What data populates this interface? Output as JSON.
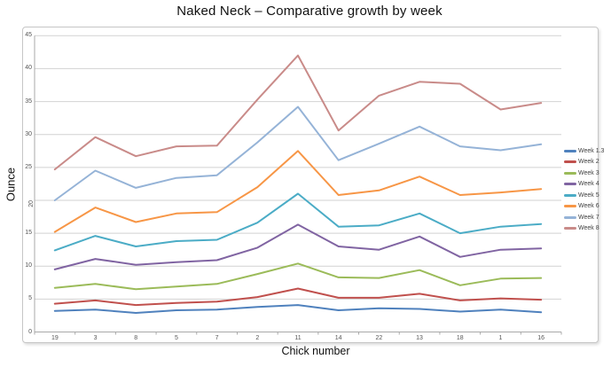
{
  "title": "Naked Neck – Comparative growth by week",
  "axis_titles": {
    "y": "Ounce",
    "x": "Chick number"
  },
  "colors": {
    "grid": "#d2d2d2",
    "axis": "#a8a8a8",
    "tick_text": "#555555",
    "frame": "#c6c6c6"
  },
  "chart_data": {
    "type": "line",
    "title": "Naked Neck – Comparative growth by week",
    "xlabel": "Chick number",
    "ylabel": "Ounce",
    "ylim": [
      0,
      45
    ],
    "y_step": 5,
    "grid": true,
    "legend_position": "right",
    "y_tick_rotated": "20",
    "categories": [
      "19",
      "3",
      "8",
      "5",
      "7",
      "2",
      "11",
      "14",
      "22",
      "13",
      "18",
      "1",
      "16"
    ],
    "series": [
      {
        "name": "Week 1.3",
        "color": "#4F81BD",
        "values": [
          3.2,
          3.4,
          2.9,
          3.3,
          3.4,
          3.8,
          4.1,
          3.3,
          3.6,
          3.5,
          3.1,
          3.4,
          3.0
        ]
      },
      {
        "name": "Week 2",
        "color": "#C0504D",
        "values": [
          4.3,
          4.8,
          4.1,
          4.4,
          4.6,
          5.3,
          6.6,
          5.2,
          5.2,
          5.8,
          4.8,
          5.1,
          4.9
        ]
      },
      {
        "name": "Week 3",
        "color": "#9BBB59",
        "values": [
          6.7,
          7.3,
          6.5,
          6.9,
          7.3,
          8.8,
          10.4,
          8.3,
          8.2,
          9.4,
          7.1,
          8.1,
          8.2
        ]
      },
      {
        "name": "Week 4",
        "color": "#8064A2",
        "values": [
          9.5,
          11.1,
          10.2,
          10.6,
          10.9,
          12.8,
          16.3,
          13.0,
          12.5,
          14.5,
          11.4,
          12.5,
          12.7
        ]
      },
      {
        "name": "Week 5",
        "color": "#4BACC6",
        "values": [
          12.4,
          14.6,
          13.0,
          13.8,
          14.0,
          16.6,
          21.0,
          16.0,
          16.2,
          18.0,
          15.0,
          16.0,
          16.4
        ]
      },
      {
        "name": "Week 6",
        "color": "#F79646",
        "values": [
          15.2,
          18.9,
          16.7,
          18.0,
          18.2,
          22.0,
          27.5,
          20.8,
          21.5,
          23.6,
          20.8,
          21.2,
          21.7
        ]
      },
      {
        "name": "Week 7",
        "color": "#95B3D7",
        "values": [
          20.0,
          24.5,
          21.9,
          23.4,
          23.8,
          28.8,
          34.2,
          26.1,
          28.6,
          31.2,
          28.2,
          27.6,
          28.5
        ]
      },
      {
        "name": "Week 8",
        "color": "#C98B89",
        "values": [
          24.7,
          29.6,
          26.7,
          28.2,
          28.3,
          35.3,
          42.0,
          30.6,
          35.9,
          38.0,
          37.7,
          33.8,
          34.8
        ]
      }
    ]
  }
}
